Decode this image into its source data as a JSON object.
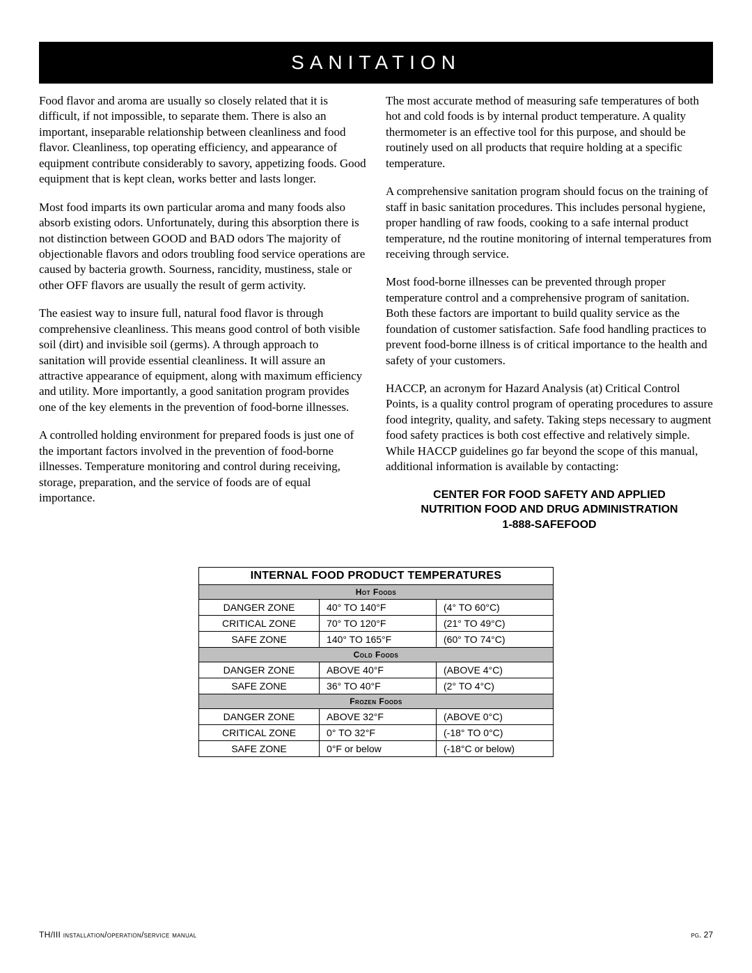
{
  "header": {
    "title": "SANITATION"
  },
  "left_column": {
    "p1": "Food flavor and aroma are usually so closely related that it is difficult, if not impossible, to separate them. There is also an important, inseparable relationship between cleanliness and food flavor. Cleanliness, top operating efficiency, and appearance of equipment contribute considerably to savory, appetizing foods. Good equipment that is kept clean, works better and lasts longer.",
    "p2": "Most food imparts its own particular aroma and many foods also absorb existing odors. Unfortunately, during this absorption there is not distinction between GOOD and BAD odors  The majority of objectionable flavors and odors troubling food service operations are caused by bacteria growth. Sourness, rancidity, mustiness, stale or other OFF flavors are usually the result of germ activity.",
    "p3": "The easiest way to insure full, natural food flavor is through comprehensive cleanliness. This means good control of both visible soil (dirt) and invisible soil (germs). A through approach to sanitation will provide essential cleanliness. It will assure an attractive appearance of equipment, along with maximum efficiency and utility. More importantly, a good sanitation program provides one of the key elements in the prevention of food-borne illnesses.",
    "p4": "A controlled holding environment for prepared foods is just one of the important factors involved in the prevention of food-borne illnesses. Temperature monitoring and control during receiving, storage, preparation, and the service of foods are of equal importance."
  },
  "right_column": {
    "p1": "The most accurate method of measuring safe temperatures of both hot and cold foods is by internal product temperature. A quality thermometer is an effective tool for this purpose, and should be routinely used on all products that require holding at a specific temperature.",
    "p2": "A comprehensive sanitation program should focus on the training of staff in basic sanitation procedures. This includes personal hygiene, proper handling of raw foods, cooking to a safe internal product temperature, nd the routine monitoring of internal temperatures from receiving through service.",
    "p3": "Most food-borne illnesses can be prevented through proper temperature control and a comprehensive program of sanitation. Both these factors are important to build quality service as the foundation of customer satisfaction. Safe food handling practices to prevent food-borne illness is of critical importance to the health and safety of your customers.",
    "p4": "HACCP, an acronym for Hazard Analysis (at) Critical Control Points, is a quality control program of operating procedures to assure food integrity, quality, and safety. Taking steps necessary to augment food safety practices is both cost effective and relatively simple. While HACCP guidelines go far beyond the scope of this manual, additional information is available by contacting:",
    "contact_line1": "CENTER FOR FOOD SAFETY AND APPLIED",
    "contact_line2": "NUTRITION FOOD AND DRUG ADMINISTRATION",
    "contact_line3": "1-888-SAFEFOOD"
  },
  "table": {
    "title": "INTERNAL FOOD PRODUCT TEMPERATURES",
    "sections": [
      {
        "header": "Hot Foods",
        "rows": [
          {
            "zone": "DANGER ZONE",
            "f": "40° TO 140°F",
            "c": "(4° TO 60°C)"
          },
          {
            "zone": "CRITICAL ZONE",
            "f": "70° TO 120°F",
            "c": "(21° TO 49°C)"
          },
          {
            "zone": "SAFE ZONE",
            "f": "140° TO 165°F",
            "c": "(60° TO 74°C)"
          }
        ]
      },
      {
        "header": "Cold Foods",
        "rows": [
          {
            "zone": "DANGER ZONE",
            "f": "ABOVE 40°F",
            "c": "(ABOVE 4°C)"
          },
          {
            "zone": "SAFE ZONE",
            "f": "36° TO 40°F",
            "c": "(2° TO 4°C)"
          }
        ]
      },
      {
        "header": "Frozen Foods",
        "rows": [
          {
            "zone": "DANGER ZONE",
            "f": "ABOVE 32°F",
            "c": "(ABOVE 0°C)"
          },
          {
            "zone": "CRITICAL ZONE",
            "f": "0° TO 32°F",
            "c": "(-18° TO 0°C)"
          },
          {
            "zone": "SAFE ZONE",
            "f": "0°F or below",
            "c": "(-18°C or below)"
          }
        ]
      }
    ],
    "col_widths": [
      "34%",
      "33%",
      "33%"
    ],
    "header_bg": "#bfbfbf"
  },
  "footer": {
    "left_prefix": "TH/III ",
    "left_small": "installation/operation/service manual",
    "right": "pg. 27"
  }
}
